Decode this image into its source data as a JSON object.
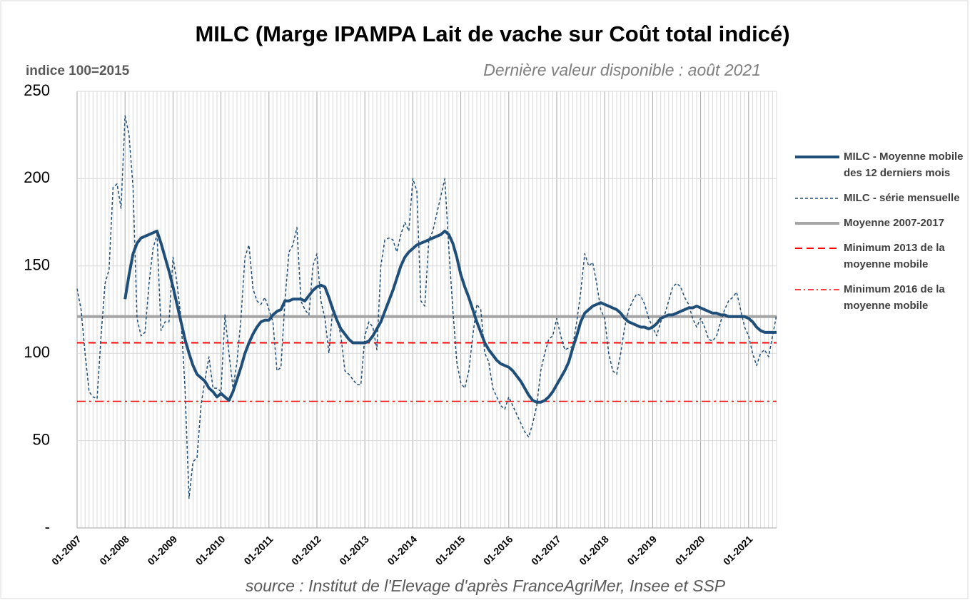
{
  "chart_data": {
    "type": "line",
    "title": "MILC (Marge IPAMPA Lait de vache sur Coût total indicé)",
    "y_axis_label": "indice 100=2015",
    "subtitle": "Dernière valeur disponible : août 2021",
    "source": "source : Institut de l'Elevage d'après FranceAgriMer, Insee et SSP",
    "categories": [
      "01-2007",
      null,
      null,
      null,
      null,
      null,
      null,
      null,
      null,
      null,
      null,
      null,
      "01-2008",
      null,
      null,
      null,
      null,
      null,
      null,
      null,
      null,
      null,
      null,
      null,
      "01-2009",
      null,
      null,
      null,
      null,
      null,
      null,
      null,
      null,
      null,
      null,
      null,
      "01-2010",
      null,
      null,
      null,
      null,
      null,
      null,
      null,
      null,
      null,
      null,
      null,
      "01-2011",
      null,
      null,
      null,
      null,
      null,
      null,
      null,
      null,
      null,
      null,
      null,
      "01-2012",
      null,
      null,
      null,
      null,
      null,
      null,
      null,
      null,
      null,
      null,
      null,
      "01-2013",
      null,
      null,
      null,
      null,
      null,
      null,
      null,
      null,
      null,
      null,
      null,
      "01-2014",
      null,
      null,
      null,
      null,
      null,
      null,
      null,
      null,
      null,
      null,
      null,
      "01-2015",
      null,
      null,
      null,
      null,
      null,
      null,
      null,
      null,
      null,
      null,
      null,
      "01-2016",
      null,
      null,
      null,
      null,
      null,
      null,
      null,
      null,
      null,
      null,
      null,
      "01-2017",
      null,
      null,
      null,
      null,
      null,
      null,
      null,
      null,
      null,
      null,
      null,
      "01-2018",
      null,
      null,
      null,
      null,
      null,
      null,
      null,
      null,
      null,
      null,
      null,
      "01-2019",
      null,
      null,
      null,
      null,
      null,
      null,
      null,
      null,
      null,
      null,
      null,
      "01-2020",
      null,
      null,
      null,
      null,
      null,
      null,
      null,
      null,
      null,
      null,
      null,
      "01-2021",
      null,
      null,
      null,
      null,
      null,
      null,
      null
    ],
    "series": [
      {
        "name": "MILC - Moyenne mobile des 12 derniers mois",
        "color": "#1f4e79",
        "style": "solid",
        "width": 4,
        "values": [
          null,
          null,
          null,
          null,
          null,
          null,
          null,
          null,
          null,
          null,
          null,
          null,
          131,
          145,
          157,
          163,
          166,
          167,
          168,
          169,
          170,
          163,
          155,
          147,
          138,
          128,
          118,
          108,
          100,
          93,
          88,
          86,
          84,
          80,
          78,
          75,
          77,
          75,
          73,
          78,
          85,
          92,
          100,
          106,
          111,
          115,
          118,
          119,
          119,
          122,
          124,
          125,
          130,
          130,
          131,
          131,
          131,
          130,
          133,
          136,
          138,
          139,
          138,
          132,
          125,
          119,
          114,
          111,
          108,
          106,
          106,
          106,
          106,
          107,
          110,
          114,
          118,
          124,
          130,
          136,
          143,
          150,
          155,
          158,
          160,
          162,
          163,
          164,
          165,
          166,
          167,
          168,
          170,
          168,
          163,
          155,
          145,
          138,
          132,
          125,
          118,
          112,
          106,
          102,
          99,
          96,
          94,
          93,
          92,
          90,
          87,
          84,
          80,
          76,
          73,
          72,
          72,
          73,
          75,
          78,
          82,
          86,
          90,
          95,
          103,
          110,
          118,
          123,
          125,
          127,
          128,
          129,
          128,
          127,
          126,
          125,
          123,
          120,
          118,
          117,
          116,
          115,
          115,
          114,
          115,
          117,
          120,
          121,
          122,
          122,
          123,
          124,
          125,
          126,
          126,
          127,
          126,
          125,
          124,
          123,
          123,
          122,
          122,
          121,
          121,
          121,
          121,
          121,
          120,
          118,
          115,
          113,
          112,
          112,
          112,
          112
        ]
      },
      {
        "name": "MILC - série mensuelle",
        "color": "#1f4e79",
        "style": "dashed",
        "width": 1.5,
        "values": [
          137,
          125,
          100,
          78,
          75,
          74,
          110,
          140,
          148,
          195,
          197,
          183,
          236,
          225,
          195,
          120,
          110,
          112,
          140,
          160,
          168,
          113,
          118,
          118,
          155,
          140,
          120,
          80,
          17,
          38,
          40,
          70,
          85,
          98,
          80,
          80,
          78,
          122,
          100,
          80,
          95,
          120,
          155,
          162,
          137,
          130,
          128,
          132,
          125,
          118,
          90,
          92,
          130,
          158,
          162,
          172,
          130,
          125,
          122,
          150,
          157,
          130,
          120,
          100,
          127,
          120,
          110,
          90,
          88,
          85,
          82,
          82,
          110,
          118,
          115,
          102,
          150,
          165,
          166,
          165,
          158,
          168,
          175,
          170,
          200,
          193,
          130,
          127,
          165,
          170,
          180,
          190,
          200,
          160,
          125,
          95,
          83,
          80,
          90,
          110,
          128,
          125,
          100,
          95,
          80,
          75,
          70,
          68,
          75,
          70,
          65,
          60,
          55,
          52,
          60,
          70,
          90,
          100,
          108,
          110,
          120,
          110,
          102,
          103,
          104,
          118,
          135,
          157,
          150,
          152,
          140,
          125,
          120,
          100,
          90,
          88,
          100,
          115,
          125,
          130,
          134,
          133,
          128,
          120,
          115,
          110,
          118,
          122,
          130,
          138,
          140,
          138,
          132,
          128,
          120,
          115,
          120,
          115,
          108,
          107,
          110,
          118,
          125,
          130,
          132,
          135,
          125,
          115,
          110,
          100,
          93,
          100,
          102,
          98,
          110,
          122
        ]
      }
    ],
    "reference_lines": [
      {
        "name": "Moyenne 2007-2017",
        "value": 121,
        "color": "#a6a6a6",
        "style": "solid",
        "width": 4
      },
      {
        "name": "Minimum 2013 de la moyenne mobile",
        "value": 106,
        "color": "#ff0000",
        "style": "dashed",
        "width": 2
      },
      {
        "name": "Minimum 2016 de la moyenne mobile",
        "value": 72.5,
        "color": "#ff0000",
        "style": "dashdot",
        "width": 1.5
      }
    ],
    "ylim": [
      0,
      250
    ],
    "yticks": [
      {
        "value": 0,
        "label": "-"
      },
      50,
      100,
      150,
      200,
      250
    ],
    "grid": true
  }
}
